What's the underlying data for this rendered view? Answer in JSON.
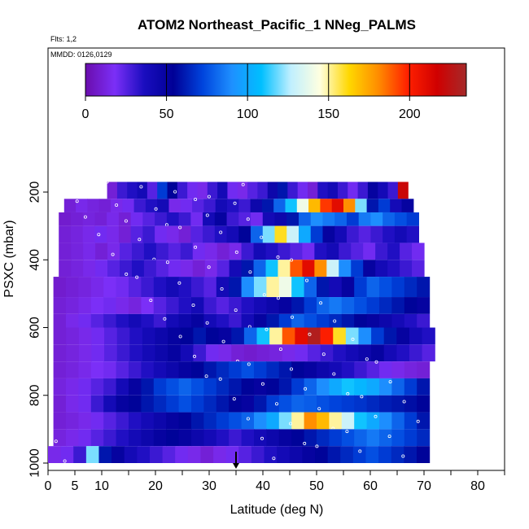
{
  "chart_data": {
    "type": "heatmap",
    "title": "ATOM2 Northeast_Pacific_1 NNeg_PALMS",
    "subtitle_flights": "Flts: 1,2",
    "subtitle_dates": "MMDD: 0126,0129",
    "xlabel": "Latitude (deg N)",
    "ylabel": "PSXC (mbar)",
    "xlim": [
      0,
      85
    ],
    "ylim": [
      1000,
      100
    ],
    "x_ticks": [
      0,
      5,
      10,
      20,
      30,
      40,
      50,
      60,
      70,
      80
    ],
    "x_minor_ticks": [
      15,
      25,
      35,
      45,
      55,
      65,
      75,
      85
    ],
    "y_ticks": [
      200,
      400,
      600,
      800,
      1000
    ],
    "colorbar": {
      "range": [
        0,
        235
      ],
      "ticks": [
        0,
        50,
        100,
        150,
        200
      ],
      "colors": [
        "#6a0dad",
        "#7b2ff7",
        "#1a0dbf",
        "#000096",
        "#0044dd",
        "#1e90ff",
        "#00bfff",
        "#bfefff",
        "#ffffe0",
        "#ffd700",
        "#ff8c00",
        "#ff2000",
        "#d00000",
        "#a52a2a"
      ]
    },
    "marker": {
      "latitude": 35,
      "pressure": 1000
    },
    "rows": [
      {
        "p": [
          170,
          220
        ],
        "lat": [
          11,
          67
        ],
        "vals": [
          10,
          30,
          35,
          40,
          25,
          70,
          55,
          30,
          20,
          15,
          30,
          40,
          20,
          15,
          25,
          30,
          45,
          60,
          30,
          20,
          10,
          35,
          40,
          30,
          20,
          30,
          50,
          40,
          30,
          220
        ]
      },
      {
        "p": [
          220,
          260
        ],
        "lat": [
          3,
          68
        ],
        "vals": [
          10,
          15,
          12,
          10,
          15,
          20,
          30,
          35,
          40,
          15,
          20,
          25,
          30,
          40,
          35,
          30,
          45,
          60,
          80,
          110,
          140,
          170,
          195,
          210,
          180,
          120,
          60,
          70,
          40,
          50
        ]
      },
      {
        "p": [
          260,
          300
        ],
        "lat": [
          2,
          69
        ],
        "vals": [
          8,
          10,
          12,
          10,
          15,
          10,
          20,
          25,
          30,
          35,
          30,
          20,
          40,
          50,
          30,
          25,
          20,
          40,
          45,
          60,
          80,
          90,
          85,
          80,
          70,
          85,
          90,
          80,
          75,
          70
        ]
      },
      {
        "p": [
          300,
          350
        ],
        "lat": [
          2,
          69
        ],
        "vals": [
          10,
          12,
          15,
          20,
          15,
          10,
          25,
          30,
          20,
          15,
          10,
          25,
          30,
          35,
          40,
          55,
          80,
          120,
          160,
          130,
          100,
          70,
          50,
          40,
          30,
          25,
          30,
          35,
          40,
          35
        ]
      },
      {
        "p": [
          350,
          400
        ],
        "lat": [
          2,
          70
        ],
        "vals": [
          10,
          12,
          15,
          10,
          15,
          25,
          30,
          35,
          30,
          25,
          30,
          20,
          15,
          10,
          15,
          30,
          40,
          35,
          30,
          25,
          20,
          35,
          40,
          30,
          25,
          20,
          30,
          35,
          25,
          20
        ]
      },
      {
        "p": [
          400,
          450
        ],
        "lat": [
          2,
          70
        ],
        "vals": [
          10,
          12,
          15,
          20,
          25,
          30,
          35,
          30,
          25,
          20,
          15,
          10,
          15,
          25,
          40,
          60,
          80,
          110,
          150,
          190,
          210,
          180,
          130,
          90,
          70,
          50,
          40,
          35,
          30,
          25
        ]
      },
      {
        "p": [
          450,
          510
        ],
        "lat": [
          1,
          71
        ],
        "vals": [
          8,
          10,
          12,
          15,
          18,
          20,
          25,
          30,
          35,
          40,
          35,
          30,
          25,
          40,
          60,
          90,
          120,
          150,
          140,
          110,
          80,
          60,
          40,
          50,
          70,
          80,
          75,
          70,
          65,
          60
        ]
      },
      {
        "p": [
          510,
          560
        ],
        "lat": [
          1,
          71
        ],
        "vals": [
          10,
          12,
          15,
          18,
          20,
          15,
          12,
          18,
          25,
          30,
          35,
          40,
          30,
          25,
          30,
          35,
          40,
          45,
          50,
          60,
          70,
          80,
          85,
          80,
          75,
          70,
          65,
          60,
          55,
          50
        ]
      },
      {
        "p": [
          560,
          600
        ],
        "lat": [
          1,
          71
        ],
        "vals": [
          10,
          15,
          20,
          25,
          30,
          35,
          40,
          35,
          30,
          40,
          45,
          50,
          40,
          35,
          30,
          40,
          50,
          60,
          70,
          80,
          75,
          70,
          65,
          60,
          55,
          50,
          45,
          40,
          35,
          30
        ]
      },
      {
        "p": [
          600,
          650
        ],
        "lat": [
          1,
          72
        ],
        "vals": [
          10,
          12,
          15,
          20,
          25,
          30,
          35,
          40,
          45,
          50,
          55,
          60,
          55,
          50,
          60,
          80,
          110,
          150,
          190,
          210,
          230,
          200,
          160,
          120,
          90,
          70,
          60,
          50,
          40,
          35
        ]
      },
      {
        "p": [
          650,
          700
        ],
        "lat": [
          1,
          72
        ],
        "vals": [
          10,
          12,
          15,
          20,
          25,
          30,
          35,
          40,
          45,
          50,
          40,
          30,
          20,
          15,
          10,
          8,
          10,
          12,
          15,
          20,
          25,
          30,
          35,
          40,
          45,
          50,
          40,
          35,
          30,
          25
        ]
      },
      {
        "p": [
          700,
          750
        ],
        "lat": [
          1,
          71
        ],
        "vals": [
          10,
          12,
          15,
          18,
          20,
          25,
          30,
          35,
          40,
          45,
          50,
          55,
          60,
          65,
          70,
          75,
          70,
          65,
          60,
          55,
          50,
          45,
          40,
          35,
          30,
          25,
          20,
          15,
          12,
          10
        ]
      },
      {
        "p": [
          750,
          800
        ],
        "lat": [
          1,
          71
        ],
        "vals": [
          12,
          15,
          20,
          25,
          30,
          40,
          50,
          60,
          70,
          75,
          80,
          75,
          70,
          65,
          60,
          55,
          50,
          55,
          60,
          70,
          80,
          90,
          100,
          110,
          105,
          100,
          90,
          80,
          70,
          60
        ]
      },
      {
        "p": [
          800,
          850
        ],
        "lat": [
          1,
          71
        ],
        "vals": [
          10,
          15,
          20,
          30,
          40,
          50,
          55,
          60,
          65,
          70,
          75,
          70,
          65,
          60,
          55,
          50,
          60,
          70,
          75,
          80,
          78,
          75,
          72,
          70,
          68,
          65,
          62,
          60,
          58,
          55
        ]
      },
      {
        "p": [
          850,
          900
        ],
        "lat": [
          1,
          71
        ],
        "vals": [
          10,
          12,
          15,
          20,
          25,
          30,
          35,
          40,
          45,
          50,
          55,
          60,
          65,
          70,
          75,
          80,
          90,
          100,
          120,
          150,
          180,
          170,
          150,
          130,
          110,
          100,
          90,
          80,
          70,
          60
        ]
      },
      {
        "p": [
          900,
          950
        ],
        "lat": [
          1,
          71
        ],
        "vals": [
          12,
          15,
          20,
          25,
          30,
          35,
          40,
          45,
          50,
          55,
          50,
          45,
          40,
          35,
          30,
          35,
          40,
          45,
          50,
          55,
          60,
          65,
          70,
          75,
          80,
          85,
          80,
          75,
          70,
          65
        ]
      },
      {
        "p": [
          950,
          1000
        ],
        "lat": [
          0,
          71
        ],
        "vals": [
          15,
          20,
          30,
          120,
          60,
          50,
          40,
          35,
          30,
          25,
          20,
          15,
          10,
          15,
          20,
          25,
          30,
          35,
          40,
          45,
          50,
          55,
          60,
          65,
          70,
          75,
          70,
          65,
          60,
          55
        ]
      }
    ]
  }
}
